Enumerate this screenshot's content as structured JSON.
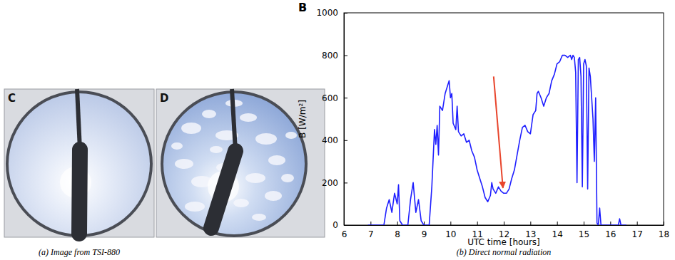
{
  "chart_data": {
    "type": "line",
    "panel_label": "B",
    "xlabel": "UTC time [hours]",
    "ylabel": "B [W/m²]",
    "xlim": [
      6,
      18
    ],
    "xticks": [
      6,
      7,
      8,
      9,
      10,
      11,
      12,
      13,
      14,
      15,
      16,
      17,
      18
    ],
    "ylim": [
      0,
      1000
    ],
    "yticks": [
      0,
      200,
      400,
      600,
      800,
      1000
    ],
    "grid": false,
    "color": "#1f1fff",
    "x": [
      6.9,
      7.5,
      7.6,
      7.7,
      7.8,
      7.9,
      8.0,
      8.05,
      8.1,
      8.2,
      8.4,
      8.5,
      8.6,
      8.7,
      8.8,
      8.9,
      9.0,
      9.2,
      9.3,
      9.4,
      9.45,
      9.5,
      9.55,
      9.6,
      9.7,
      9.8,
      9.9,
      9.95,
      10.0,
      10.05,
      10.1,
      10.2,
      10.25,
      10.3,
      10.4,
      10.5,
      10.6,
      10.7,
      10.8,
      10.9,
      11.0,
      11.1,
      11.2,
      11.3,
      11.4,
      11.5,
      11.55,
      11.6,
      11.7,
      11.8,
      11.9,
      12.0,
      12.1,
      12.2,
      12.3,
      12.4,
      12.5,
      12.6,
      12.7,
      12.8,
      12.9,
      13.0,
      13.1,
      13.2,
      13.25,
      13.3,
      13.4,
      13.5,
      13.6,
      13.7,
      13.8,
      13.9,
      14.0,
      14.1,
      14.2,
      14.3,
      14.4,
      14.5,
      14.55,
      14.6,
      14.65,
      14.7,
      14.75,
      14.8,
      14.85,
      14.9,
      14.95,
      15.0,
      15.05,
      15.1,
      15.15,
      15.2,
      15.25,
      15.3,
      15.35,
      15.4,
      15.45,
      15.5,
      15.55,
      15.6,
      15.65,
      15.7,
      16.0,
      16.3,
      16.35,
      16.4,
      16.6
    ],
    "values": [
      0,
      0,
      80,
      120,
      60,
      150,
      100,
      190,
      20,
      0,
      0,
      120,
      200,
      60,
      120,
      20,
      0,
      0,
      180,
      450,
      380,
      470,
      330,
      560,
      540,
      620,
      660,
      680,
      600,
      620,
      480,
      450,
      560,
      440,
      420,
      430,
      390,
      400,
      350,
      320,
      260,
      220,
      180,
      130,
      110,
      140,
      200,
      170,
      150,
      180,
      160,
      150,
      150,
      170,
      220,
      260,
      330,
      400,
      460,
      470,
      440,
      430,
      520,
      540,
      620,
      630,
      600,
      560,
      600,
      620,
      680,
      710,
      760,
      770,
      800,
      800,
      790,
      800,
      780,
      800,
      790,
      720,
      200,
      780,
      790,
      700,
      180,
      760,
      780,
      750,
      170,
      740,
      700,
      600,
      500,
      300,
      600,
      10,
      0,
      80,
      0,
      0,
      0,
      0,
      30,
      0,
      0
    ],
    "annotations": [
      {
        "type": "arrow",
        "x": [
          11.62,
          11.97
        ],
        "y": [
          700,
          175
        ],
        "color": "#e8452c"
      }
    ]
  },
  "images": [
    {
      "letter": "C"
    },
    {
      "letter": "D"
    }
  ],
  "captions": [
    "(a) Image from TSI-880",
    "(b) Direct normal radiation"
  ]
}
